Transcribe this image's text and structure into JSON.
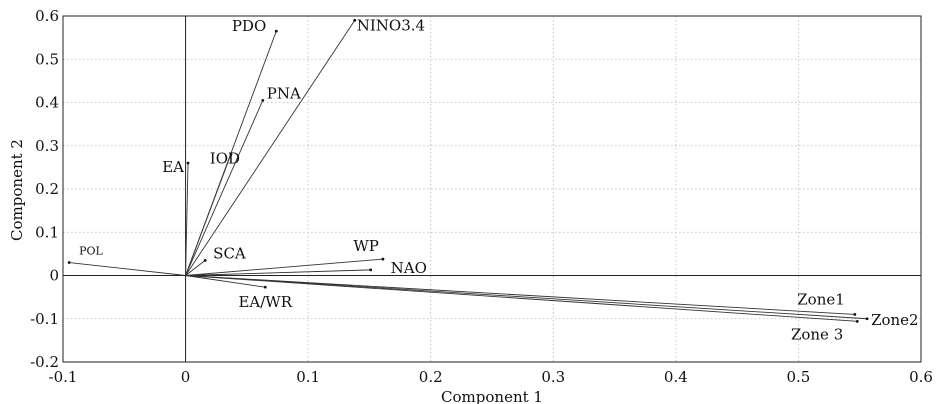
{
  "chart_data": {
    "type": "biplot",
    "xlabel": "Component 1",
    "ylabel": "Component 2",
    "xlim": [
      -0.1,
      0.6
    ],
    "ylim": [
      -0.2,
      0.6
    ],
    "xticks": [
      "-0.1",
      "0",
      "0.1",
      "0.2",
      "0.3",
      "0.4",
      "0.5",
      "0.6"
    ],
    "yticks": [
      "-0.2",
      "-0.1",
      "0",
      "0.1",
      "0.2",
      "0.3",
      "0.4",
      "0.5",
      "0.6"
    ],
    "grid": true,
    "colors": {
      "vector": "#333333",
      "grid": "#b8b8b8",
      "axis": "#222222"
    },
    "vectors": [
      {
        "label": "PDO",
        "x": 0.074,
        "y": 0.565
      },
      {
        "label": "NINO3.4",
        "x": 0.138,
        "y": 0.59
      },
      {
        "label": "PNA",
        "x": 0.063,
        "y": 0.405
      },
      {
        "label": "IOD",
        "x": 0.037,
        "y": 0.28
      },
      {
        "label": "EA",
        "x": 0.002,
        "y": 0.26
      },
      {
        "label": "SCA",
        "x": 0.016,
        "y": 0.035
      },
      {
        "label": "POL",
        "x": -0.095,
        "y": 0.03
      },
      {
        "label": "WP",
        "x": 0.161,
        "y": 0.038
      },
      {
        "label": "NAO",
        "x": 0.151,
        "y": 0.013
      },
      {
        "label": "EA/WR",
        "x": 0.065,
        "y": -0.027
      },
      {
        "label": "Zone1",
        "x": 0.546,
        "y": -0.09
      },
      {
        "label": "Zone2",
        "x": 0.556,
        "y": -0.1
      },
      {
        "label": "Zone 3",
        "x": 0.548,
        "y": -0.106
      }
    ]
  }
}
